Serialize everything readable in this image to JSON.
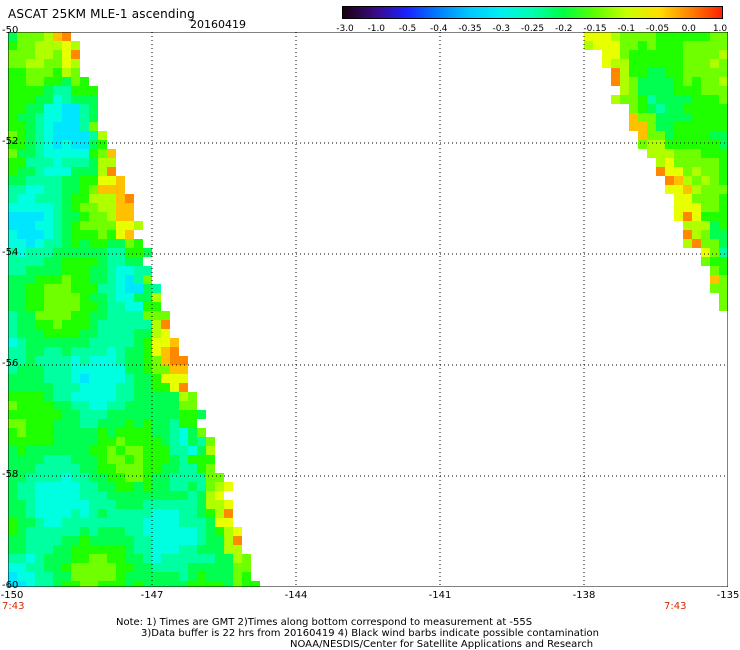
{
  "header": {
    "title": "ASCAT 25KM MLE-1 ascending",
    "date": "20160419"
  },
  "colorbar": {
    "labels": [
      "-3.0",
      "-1.0",
      "-0.5",
      "-0.4",
      "-0.35",
      "-0.3",
      "-0.25",
      "-0.2",
      "-0.15",
      "-0.1",
      "-0.05",
      "0.0",
      "1.0"
    ],
    "colors": [
      "#1a0010",
      "#3a0a80",
      "#1a20ff",
      "#007cff",
      "#00c8ff",
      "#00f0f0",
      "#00ffb0",
      "#00ff40",
      "#60ff00",
      "#c8ff00",
      "#ffe000",
      "#ff8000",
      "#ff2000"
    ]
  },
  "map": {
    "lat_labels": [
      "-50",
      "-52",
      "-54",
      "-56",
      "-58",
      "-60"
    ],
    "lon_labels": [
      "-150",
      "-147",
      "-144",
      "-141",
      "-138",
      "-135"
    ],
    "lon_min": -150,
    "lon_max": -135,
    "lat_min": -60,
    "lat_max": -50,
    "swath_left_edge_lon_at_north": -148.55,
    "swath_left_edge_lon_at_south": -144.65,
    "swath_right_start_lon_at_north": -138.05,
    "swath_right_start_lon_at_south": -134.95,
    "swath_right_end_lat": -55.3
  },
  "times": {
    "left": "7:43",
    "right": "7:43"
  },
  "notes": {
    "line1": "Note: 1) Times are GMT 2)Times along bottom correspond to measurement at -55S",
    "line2": "3)Data buffer is 22 hrs from 20160419 4) Black wind barbs indicate possible contamination",
    "line3": "NOAA/NESDIS/Center for Satellite Applications and Research"
  }
}
